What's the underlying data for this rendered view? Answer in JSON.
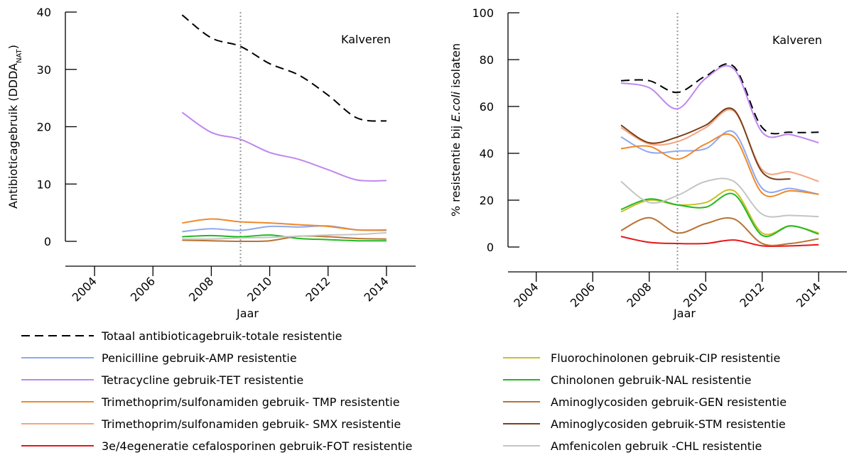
{
  "chart_data": [
    {
      "type": "line",
      "y_label_parts": [
        "Antibioticagebruik (DDDA",
        "NAT",
        ")"
      ],
      "x_label": "Jaar",
      "annotation": "Kalveren",
      "x": [
        2007,
        2008,
        2009,
        2010,
        2011,
        2012,
        2013,
        2014
      ],
      "xlim": [
        2003,
        2015
      ],
      "xticks": [
        2004,
        2006,
        2008,
        2010,
        2012,
        2014
      ],
      "marker_line": 2009,
      "ylim": [
        0,
        40
      ],
      "yticks": [
        0,
        10,
        20,
        30,
        40
      ],
      "series": [
        {
          "color": "#000000",
          "dash": true,
          "values": [
            39.5,
            35.5,
            34,
            31,
            29,
            25.5,
            21.5,
            21
          ]
        },
        {
          "color": "#8fa8ef",
          "values": [
            1.7,
            2.2,
            1.9,
            2.6,
            2.5,
            2.7,
            2.0,
            1.9
          ]
        },
        {
          "color": "#bf87ef",
          "values": [
            22.5,
            19,
            17.8,
            15.5,
            14.3,
            12.5,
            10.7,
            10.6
          ]
        },
        {
          "color": "#f0892a",
          "values": [
            3.2,
            3.9,
            3.4,
            3.2,
            2.9,
            2.6,
            2.0,
            2.0
          ]
        },
        {
          "color": "#22b822",
          "values": [
            0.8,
            1.0,
            0.8,
            1.1,
            0.5,
            0.3,
            0.1,
            0.1
          ]
        },
        {
          "color": "#b87333",
          "values": [
            0.2,
            0.1,
            0.0,
            0.1,
            0.9,
            0.8,
            0.5,
            0.4
          ]
        },
        {
          "color": "#c4c4c4",
          "values": [
            0.4,
            0.4,
            0.6,
            0.7,
            0.9,
            1.1,
            1.2,
            1.5
          ]
        }
      ]
    },
    {
      "type": "line",
      "y_label_parts": [
        "% resistentie bij ",
        "E.coli",
        " isolaten"
      ],
      "x_label": "Jaar",
      "annotation": "Kalveren",
      "x": [
        2007,
        2008,
        2009,
        2010,
        2011,
        2012,
        2013,
        2014
      ],
      "xlim": [
        2003,
        2015
      ],
      "xticks": [
        2004,
        2006,
        2008,
        2010,
        2012,
        2014
      ],
      "marker_line": 2009,
      "ylim": [
        0,
        100
      ],
      "yticks": [
        0,
        20,
        40,
        60,
        80,
        100
      ],
      "series": [
        {
          "name": "Totaal antibioticagebruik-totale resistentie",
          "color": "#000000",
          "dash": true,
          "values": [
            71,
            71,
            66,
            73,
            77,
            51,
            49,
            49
          ]
        },
        {
          "name": "Penicilline gebruik-AMP resistentie",
          "color": "#8fa8ef",
          "values": [
            47,
            40.5,
            41,
            42,
            49,
            25,
            25,
            22.5
          ]
        },
        {
          "name": "Tetracycline gebruik-TET resistentie",
          "color": "#bf87ef",
          "values": [
            70,
            68,
            59,
            72,
            76,
            49,
            48,
            44.5
          ]
        },
        {
          "name": "Trimethoprim/sulfonamiden gebruik- TMP resistentie",
          "color": "#f0892a",
          "values": [
            42,
            43,
            37.5,
            44,
            47,
            23,
            24,
            22.5
          ]
        },
        {
          "name": "Trimethoprim/sulfonamiden gebruik- SMX resistentie",
          "color": "#f4a582",
          "values": [
            51,
            44,
            45,
            51,
            58,
            33,
            32,
            28
          ]
        },
        {
          "name": "3e/4egeneratie cefalosporinen gebruik-FOT resistentie",
          "color": "#e8161a",
          "values": [
            4.5,
            2,
            1.5,
            1.5,
            3,
            0.5,
            0.5,
            1
          ]
        },
        {
          "name": "Fluorochinolonen gebruik-CIP resistentie",
          "color": "#c8c02a",
          "values": [
            15,
            20,
            18,
            19,
            24,
            6,
            9,
            6
          ]
        },
        {
          "name": "Chinolonen gebruik-NAL resistentie",
          "color": "#22b822",
          "values": [
            16,
            20.5,
            18,
            17,
            22.5,
            5,
            9,
            5.5
          ]
        },
        {
          "name": "Aminoglycosiden gebruik-GEN resistentie",
          "color": "#b87333",
          "values": [
            7,
            12.5,
            6,
            10,
            12,
            1.5,
            1.5,
            3.5
          ]
        },
        {
          "name": "Aminoglycosiden gebruik-STM resistentie",
          "color": "#7b3f1a",
          "values": [
            52,
            44.5,
            47,
            52,
            58.5,
            32,
            29,
            null
          ]
        },
        {
          "name": "Amfenicolen gebruik -CHL resistentie",
          "color": "#c4c4c4",
          "values": [
            28,
            19,
            22,
            28,
            28,
            14,
            13.5,
            13
          ]
        }
      ]
    }
  ]
}
